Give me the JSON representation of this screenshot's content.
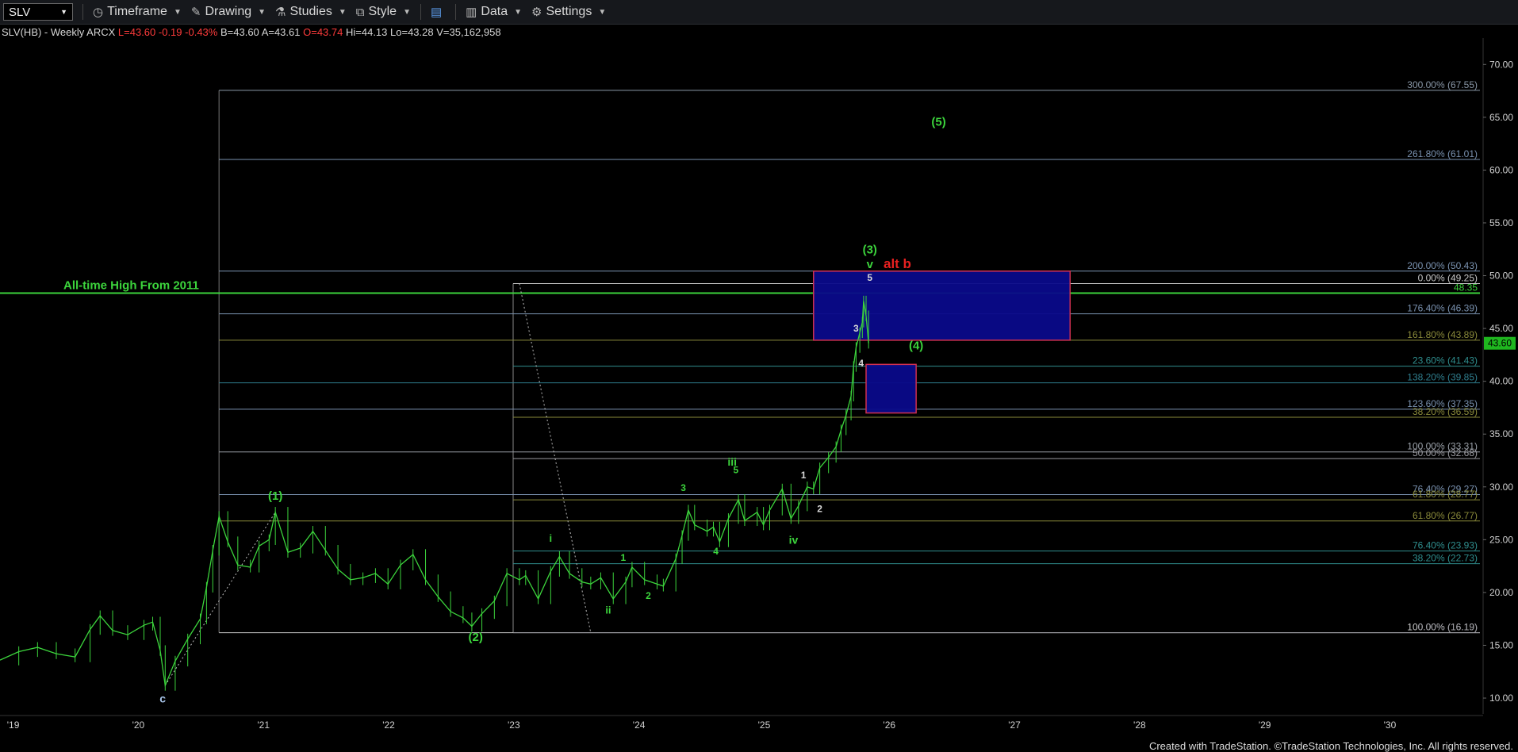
{
  "toolbar": {
    "symbol": "SLV",
    "timeframe": "Timeframe",
    "drawing": "Drawing",
    "studies": "Studies",
    "style": "Style",
    "data": "Data",
    "settings": "Settings"
  },
  "quote": {
    "name": "SLV(HB) - Weekly  ARCX",
    "last": "L=43.60",
    "chg": "-0.19",
    "chg_pct": "-0.43%",
    "bid": "B=43.60",
    "ask": "A=43.61",
    "open": "O=43.74",
    "high": "Hi=44.13",
    "low": "Lo=43.28",
    "volume": "V=35,162,958"
  },
  "footer": "Created with TradeStation. ©TradeStation Technologies, Inc. All rights reserved.",
  "chart_data": {
    "type": "line",
    "x_labels": [
      "'19",
      "'20",
      "'21",
      "'22",
      "'23",
      "'24",
      "'25",
      "'26",
      "'27",
      "'28",
      "'29",
      "'30"
    ],
    "x_range": [
      2018.9,
      2030.75
    ],
    "y_range": [
      8.5,
      72.5
    ],
    "y_ticks": [
      "10.00",
      "15.00",
      "20.00",
      "25.00",
      "30.00",
      "35.00",
      "40.00",
      "45.00",
      "50.00",
      "55.00",
      "60.00",
      "65.00",
      "70.00"
    ],
    "last_price": "43.60",
    "series": [
      {
        "values": [
          [
            2018.9,
            13.6
          ],
          [
            2019.05,
            14.4
          ],
          [
            2019.2,
            14.8
          ],
          [
            2019.35,
            14.2
          ],
          [
            2019.5,
            13.9
          ],
          [
            2019.62,
            16.5
          ],
          [
            2019.7,
            17.8
          ],
          [
            2019.8,
            16.4
          ],
          [
            2019.92,
            16.0
          ],
          [
            2020.05,
            16.9
          ],
          [
            2020.12,
            17.2
          ],
          [
            2020.18,
            14.5
          ],
          [
            2020.22,
            11.2
          ],
          [
            2020.3,
            13.5
          ],
          [
            2020.4,
            15.6
          ],
          [
            2020.5,
            17.5
          ],
          [
            2020.55,
            20.5
          ],
          [
            2020.6,
            24.0
          ],
          [
            2020.65,
            27.2
          ],
          [
            2020.72,
            24.8
          ],
          [
            2020.8,
            22.6
          ],
          [
            2020.9,
            22.4
          ],
          [
            2020.97,
            24.4
          ],
          [
            2021.05,
            25.0
          ],
          [
            2021.1,
            27.6
          ],
          [
            2021.2,
            23.8
          ],
          [
            2021.3,
            24.2
          ],
          [
            2021.4,
            25.8
          ],
          [
            2021.5,
            24.0
          ],
          [
            2021.6,
            22.2
          ],
          [
            2021.7,
            21.2
          ],
          [
            2021.8,
            21.4
          ],
          [
            2021.9,
            21.8
          ],
          [
            2022.0,
            20.8
          ],
          [
            2022.1,
            22.6
          ],
          [
            2022.2,
            23.6
          ],
          [
            2022.3,
            21.2
          ],
          [
            2022.4,
            19.6
          ],
          [
            2022.5,
            18.2
          ],
          [
            2022.6,
            17.6
          ],
          [
            2022.67,
            16.8
          ],
          [
            2022.75,
            18.0
          ],
          [
            2022.85,
            19.2
          ],
          [
            2022.95,
            21.8
          ],
          [
            2023.05,
            21.2
          ],
          [
            2023.1,
            21.6
          ],
          [
            2023.2,
            19.4
          ],
          [
            2023.3,
            22.0
          ],
          [
            2023.37,
            23.4
          ],
          [
            2023.45,
            21.8
          ],
          [
            2023.55,
            21.0
          ],
          [
            2023.62,
            20.8
          ],
          [
            2023.7,
            21.4
          ],
          [
            2023.8,
            19.4
          ],
          [
            2023.9,
            21.0
          ],
          [
            2023.95,
            22.4
          ],
          [
            2024.05,
            21.2
          ],
          [
            2024.15,
            20.8
          ],
          [
            2024.2,
            20.6
          ],
          [
            2024.3,
            23.2
          ],
          [
            2024.35,
            25.4
          ],
          [
            2024.4,
            27.8
          ],
          [
            2024.45,
            26.4
          ],
          [
            2024.55,
            25.8
          ],
          [
            2024.6,
            26.2
          ],
          [
            2024.65,
            24.8
          ],
          [
            2024.72,
            27.0
          ],
          [
            2024.8,
            28.8
          ],
          [
            2024.85,
            26.8
          ],
          [
            2024.95,
            27.6
          ],
          [
            2025.0,
            26.4
          ],
          [
            2025.05,
            27.8
          ],
          [
            2025.15,
            29.8
          ],
          [
            2025.22,
            27.0
          ],
          [
            2025.28,
            28.2
          ],
          [
            2025.35,
            30.0
          ],
          [
            2025.4,
            29.8
          ],
          [
            2025.45,
            31.8
          ],
          [
            2025.52,
            32.8
          ],
          [
            2025.58,
            33.8
          ],
          [
            2025.62,
            35.4
          ],
          [
            2025.66,
            36.8
          ],
          [
            2025.7,
            38.6
          ],
          [
            2025.72,
            41.4
          ],
          [
            2025.74,
            43.2
          ],
          [
            2025.77,
            44.6
          ],
          [
            2025.79,
            45.6
          ],
          [
            2025.8,
            47.6
          ],
          [
            2025.82,
            46.2
          ],
          [
            2025.84,
            43.6
          ]
        ]
      }
    ],
    "horizontal_levels": [
      {
        "price": 67.55,
        "label": "300.00% (67.55)",
        "color": "#8a98a8"
      },
      {
        "price": 61.01,
        "label": "261.80% (61.01)",
        "color": "#7a92b0"
      },
      {
        "price": 50.43,
        "label": "200.00% (50.43)",
        "color": "#7a92b0"
      },
      {
        "price": 49.25,
        "label": "0.00% (49.25)",
        "color": "#c8c8c8"
      },
      {
        "price": 48.35,
        "label": "48.35",
        "color": "#3cd43c"
      },
      {
        "price": 46.39,
        "label": "176.40% (46.39)",
        "color": "#7a92b0"
      },
      {
        "price": 43.89,
        "label": "161.80% (43.89)",
        "color": "#8a8a3a"
      },
      {
        "price": 41.43,
        "label": "23.60% (41.43)",
        "color": "#2f8e8e"
      },
      {
        "price": 39.85,
        "label": "138.20% (39.85)",
        "color": "#2f7e8e"
      },
      {
        "price": 37.35,
        "label": "123.60% (37.35)",
        "color": "#7a92b0"
      },
      {
        "price": 36.59,
        "label": "38.20% (36.59)",
        "color": "#8a8a3a"
      },
      {
        "price": 33.31,
        "label": "100.00% (33.31)",
        "color": "#9aa0a8"
      },
      {
        "price": 32.68,
        "label": "50.00% (32.68)",
        "color": "#9a9aa0"
      },
      {
        "price": 29.27,
        "label": "76.40% (29.27)",
        "color": "#7a92b0"
      },
      {
        "price": 28.77,
        "label": "61.80% (28.77)",
        "color": "#8a8a3a"
      },
      {
        "price": 26.77,
        "label": "61.80% (26.77)",
        "color": "#8a8a3a"
      },
      {
        "price": 23.93,
        "label": "76.40% (23.93)",
        "color": "#2f8e8e"
      },
      {
        "price": 22.73,
        "label": "38.20% (22.73)",
        "color": "#2f8e8e"
      },
      {
        "price": 16.19,
        "label": "100.00% (16.19)",
        "color": "#c8c8c8"
      },
      {
        "price": 16.19,
        "label": "0.00% (16.19)",
        "color": "#9a9aa0"
      }
    ],
    "ath_line": {
      "price": 48.35,
      "label": "All-time High From 2011"
    },
    "boxes": [
      {
        "x": [
          2025.4,
          2027.45
        ],
        "y": [
          43.89,
          50.43
        ],
        "label": ""
      },
      {
        "x": [
          2025.82,
          2026.22
        ],
        "y": [
          37.0,
          41.6
        ],
        "label": ""
      }
    ],
    "wave_labels": [
      {
        "x": 2021.1,
        "y": 28.8,
        "text": "(1)",
        "color": "#3cd43c",
        "size": 15
      },
      {
        "x": 2022.7,
        "y": 15.4,
        "text": "(2)",
        "color": "#3cd43c",
        "size": 15
      },
      {
        "x": 2025.85,
        "y": 52.1,
        "text": "(3)",
        "color": "#3cd43c",
        "size": 15
      },
      {
        "x": 2026.22,
        "y": 43.0,
        "text": "(4)",
        "color": "#3cd43c",
        "size": 15
      },
      {
        "x": 2026.4,
        "y": 64.2,
        "text": "(5)",
        "color": "#3cd43c",
        "size": 15
      },
      {
        "x": 2025.85,
        "y": 50.7,
        "text": "v",
        "color": "#3cd43c",
        "size": 15
      },
      {
        "x": 2026.07,
        "y": 50.7,
        "text": "alt b",
        "color": "#e82020",
        "size": 17
      },
      {
        "x": 2023.3,
        "y": 24.8,
        "text": "i",
        "color": "#3cd43c",
        "size": 13
      },
      {
        "x": 2023.76,
        "y": 18.0,
        "text": "ii",
        "color": "#3cd43c",
        "size": 13
      },
      {
        "x": 2024.75,
        "y": 32.0,
        "text": "iii",
        "color": "#3cd43c",
        "size": 14
      },
      {
        "x": 2025.24,
        "y": 24.6,
        "text": "iv",
        "color": "#3cd43c",
        "size": 14
      },
      {
        "x": 2023.88,
        "y": 23.0,
        "text": "1",
        "color": "#3cd43c",
        "size": 12
      },
      {
        "x": 2024.08,
        "y": 19.4,
        "text": "2",
        "color": "#3cd43c",
        "size": 12
      },
      {
        "x": 2024.36,
        "y": 29.6,
        "text": "3",
        "color": "#3cd43c",
        "size": 12
      },
      {
        "x": 2024.62,
        "y": 23.6,
        "text": "4",
        "color": "#3cd43c",
        "size": 12
      },
      {
        "x": 2024.78,
        "y": 31.3,
        "text": "5",
        "color": "#3cd43c",
        "size": 12
      },
      {
        "x": 2025.32,
        "y": 30.8,
        "text": "1",
        "color": "#d8d8d8",
        "size": 12
      },
      {
        "x": 2025.45,
        "y": 27.6,
        "text": "2",
        "color": "#d8d8d8",
        "size": 12
      },
      {
        "x": 2025.74,
        "y": 44.7,
        "text": "3",
        "color": "#d8d8d8",
        "size": 12
      },
      {
        "x": 2025.78,
        "y": 41.4,
        "text": "4",
        "color": "#d8d8d8",
        "size": 12
      },
      {
        "x": 2025.85,
        "y": 49.5,
        "text": "5",
        "color": "#d8d8d8",
        "size": 12
      },
      {
        "x": 2020.2,
        "y": 9.6,
        "text": "c",
        "color": "#a8c4e8",
        "size": 14
      }
    ]
  }
}
